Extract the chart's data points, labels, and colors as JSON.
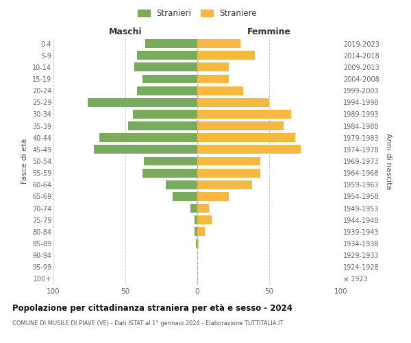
{
  "age_groups": [
    "100+",
    "95-99",
    "90-94",
    "85-89",
    "80-84",
    "75-79",
    "70-74",
    "65-69",
    "60-64",
    "55-59",
    "50-54",
    "45-49",
    "40-44",
    "35-39",
    "30-34",
    "25-29",
    "20-24",
    "15-19",
    "10-14",
    "5-9",
    "0-4"
  ],
  "birth_years": [
    "≤ 1923",
    "1924-1928",
    "1929-1933",
    "1934-1938",
    "1939-1943",
    "1944-1948",
    "1949-1953",
    "1954-1958",
    "1959-1963",
    "1964-1968",
    "1969-1973",
    "1974-1978",
    "1979-1983",
    "1984-1988",
    "1989-1993",
    "1994-1998",
    "1999-2003",
    "2004-2008",
    "2009-2013",
    "2014-2018",
    "2019-2023"
  ],
  "maschi": [
    0,
    0,
    0,
    1,
    2,
    2,
    5,
    17,
    22,
    38,
    37,
    72,
    68,
    48,
    45,
    76,
    42,
    38,
    44,
    42,
    36
  ],
  "femmine": [
    0,
    0,
    0,
    1,
    5,
    10,
    8,
    22,
    38,
    44,
    44,
    72,
    68,
    60,
    65,
    50,
    32,
    22,
    22,
    40,
    30
  ],
  "color_maschi": "#7aaa5e",
  "color_femmine": "#f5b942",
  "title": "Popolazione per cittadinanza straniera per età e sesso - 2024",
  "subtitle": "COMUNE DI MUSILE DI PIAVE (VE) - Dati ISTAT al 1° gennaio 2024 - Elaborazione TUTTITALIA.IT",
  "xlabel_left": "Maschi",
  "xlabel_right": "Femmine",
  "ylabel_left": "Fasce di età",
  "ylabel_right": "Anni di nascita",
  "legend_maschi": "Stranieri",
  "legend_femmine": "Straniere",
  "xlim": 100,
  "bg_color": "#ffffff",
  "grid_color": "#cccccc"
}
